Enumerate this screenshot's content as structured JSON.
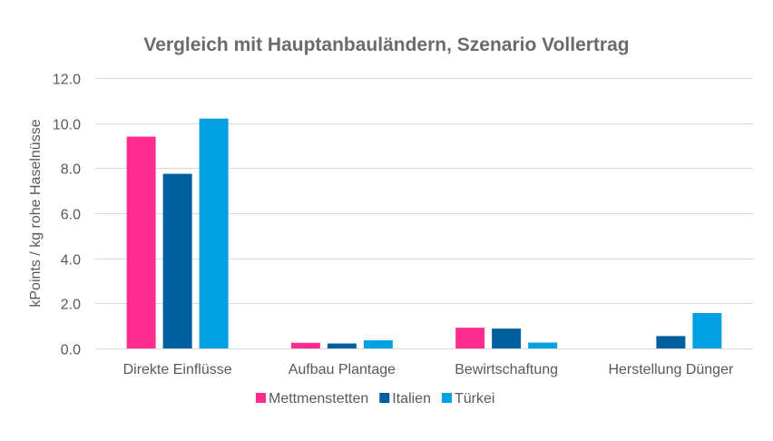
{
  "chart_data": {
    "type": "bar",
    "title": "Vergleich mit Hauptanbauländern, Szenario Vollertrag",
    "xlabel": "",
    "ylabel": "kPoints / kg rohe Haselnüsse",
    "ylim": [
      0,
      12
    ],
    "yticks": [
      "0.0",
      "2.0",
      "4.0",
      "6.0",
      "8.0",
      "10.0",
      "12.0"
    ],
    "ytick_values": [
      0,
      2,
      4,
      6,
      8,
      10,
      12
    ],
    "grid": true,
    "legend_position": "bottom",
    "categories": [
      "Direkte Einflüsse",
      "Aufbau Plantage",
      "Bewirtschaftung",
      "Herstellung Dünger"
    ],
    "series": [
      {
        "name": "Mettmenstetten",
        "color": "#ff2d8f",
        "values": [
          9.4,
          0.25,
          0.92,
          0
        ]
      },
      {
        "name": "Italien",
        "color": "#00609e",
        "values": [
          7.75,
          0.22,
          0.88,
          0.55
        ]
      },
      {
        "name": "Türkei",
        "color": "#00a0e3",
        "values": [
          10.2,
          0.36,
          0.26,
          1.57
        ]
      }
    ]
  }
}
